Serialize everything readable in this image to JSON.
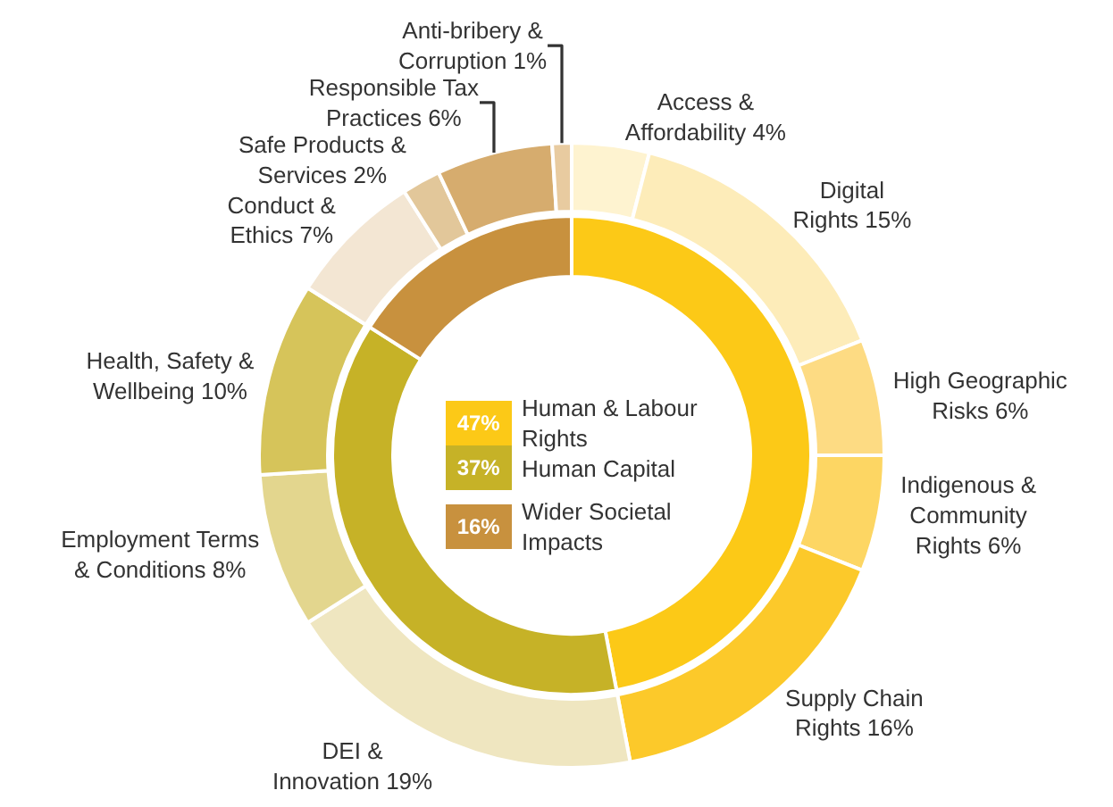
{
  "chart_data": [
    {
      "type": "donut",
      "legend": "center",
      "categories": [
        "Human & Labour Rights",
        "Human Capital",
        "Wider Societal Impacts"
      ],
      "values": [
        47,
        37,
        16
      ],
      "value_labels": [
        "47%",
        "37%",
        "16%"
      ],
      "colors": [
        "#fcc917",
        "#c6b227",
        "#c8913e"
      ]
    },
    {
      "type": "donut",
      "categories": [
        "Access & Affordability",
        "Digital Rights",
        "High Geographic Risks",
        "Indigenous & Community Rights",
        "Supply Chain Rights",
        "DEI & Innovation",
        "Employment Terms & Conditions",
        "Health, Safety & Wellbeing",
        "Conduct & Ethics",
        "Safe Products & Services",
        "Responsible Tax Practices",
        "Anti-bribery & Corruption"
      ],
      "values": [
        4,
        15,
        6,
        6,
        16,
        19,
        8,
        10,
        7,
        2,
        6,
        1
      ],
      "value_labels": [
        "4%",
        "15%",
        "6%",
        "6%",
        "16%",
        "19%",
        "8%",
        "10%",
        "7%",
        "2%",
        "6%",
        "1%"
      ],
      "colors": [
        "#fef3d0",
        "#fdecb9",
        "#fddb83",
        "#fdd663",
        "#fcc92a",
        "#efe6c0",
        "#e3d68e",
        "#d6c45a",
        "#f3e6d3",
        "#e2c79a",
        "#d6ac6e",
        "#e8cba0"
      ]
    }
  ]
}
